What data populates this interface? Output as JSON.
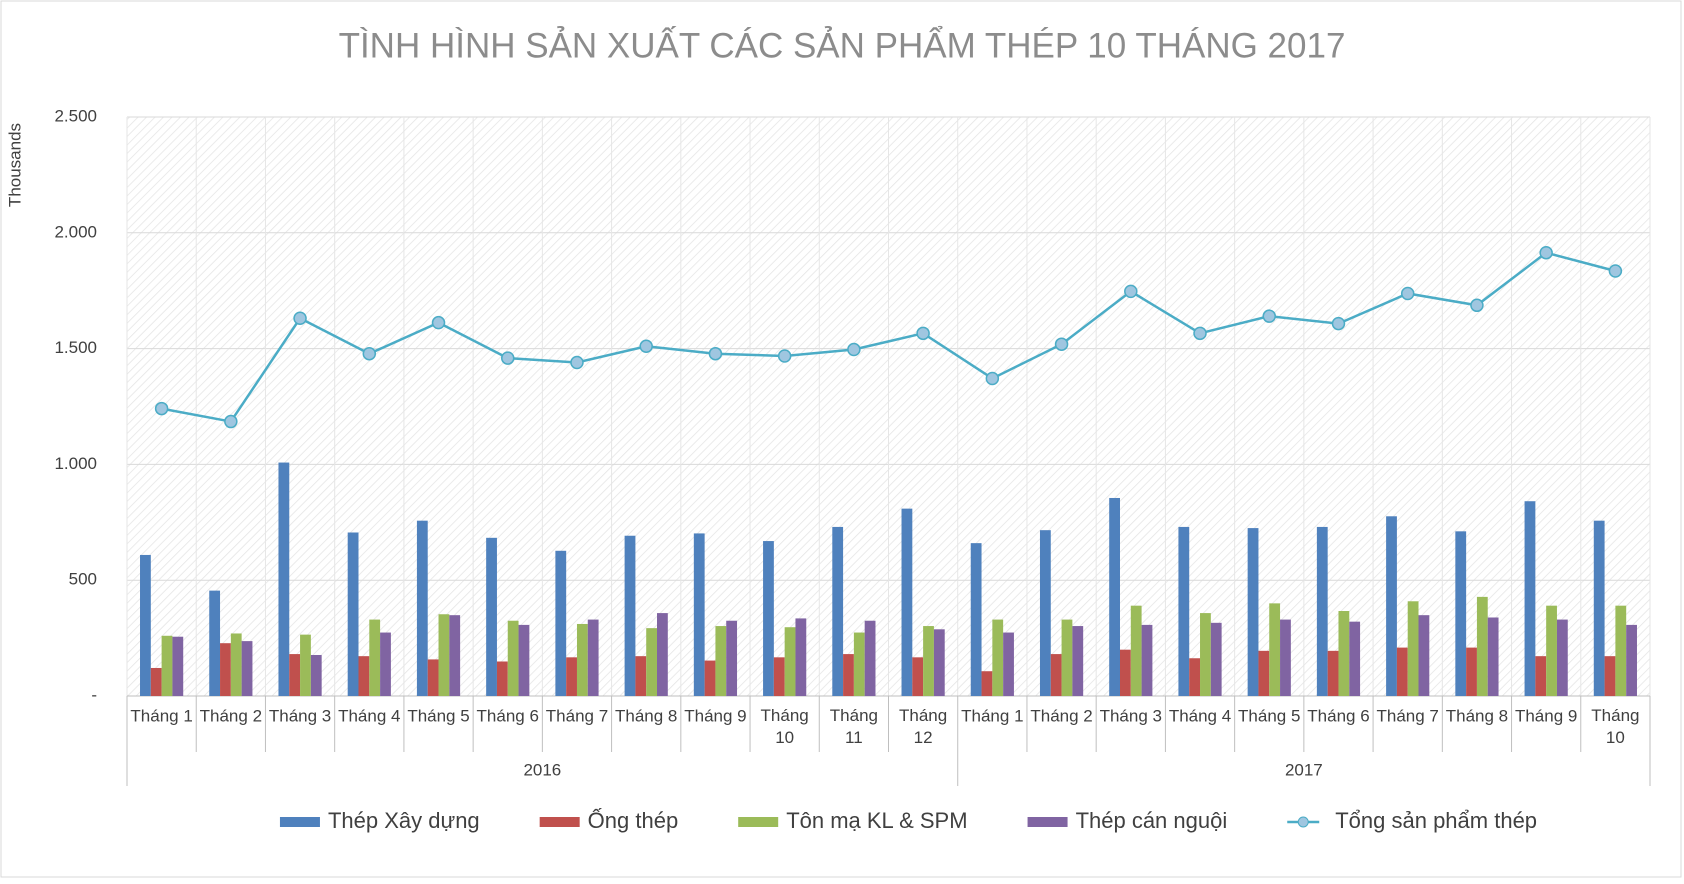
{
  "chart_data": {
    "type": "bar-line",
    "title": "TÌNH HÌNH SẢN XUẤT CÁC SẢN PHẨM THÉP 10 THÁNG 2017",
    "y_label": "Thousands",
    "category_groups": [
      {
        "name": "2016",
        "categories": [
          "Tháng 1",
          "Tháng 2",
          "Tháng 3",
          "Tháng 4",
          "Tháng 5",
          "Tháng 6",
          "Tháng 7",
          "Tháng 8",
          "Tháng 9",
          "Tháng 10",
          "Tháng 11",
          "Tháng 12"
        ]
      },
      {
        "name": "2017",
        "categories": [
          "Tháng 1",
          "Tháng 2",
          "Tháng 3",
          "Tháng 4",
          "Tháng 5",
          "Tháng 6",
          "Tháng 7",
          "Tháng 8",
          "Tháng 9",
          "Tháng 10"
        ]
      }
    ],
    "series": [
      {
        "name": "Thép Xây dựng",
        "type": "bar",
        "color": "#4f81bd",
        "values": [
          609,
          455,
          1008,
          706,
          757,
          683,
          627,
          692,
          702,
          669,
          730,
          809,
          660,
          716,
          855,
          730,
          725,
          730,
          776,
          711,
          841,
          757
        ]
      },
      {
        "name": "Ống thép",
        "type": "bar",
        "color": "#c0504d",
        "values": [
          121,
          228,
          181,
          172,
          158,
          149,
          167,
          172,
          153,
          167,
          181,
          167,
          107,
          181,
          200,
          163,
          195,
          195,
          209,
          209,
          172,
          172
        ]
      },
      {
        "name": "Tôn mạ KL & SPM",
        "type": "bar",
        "color": "#9bbb59",
        "values": [
          260,
          270,
          265,
          330,
          353,
          325,
          311,
          293,
          302,
          297,
          274,
          302,
          330,
          330,
          390,
          358,
          400,
          367,
          409,
          428,
          390,
          390
        ]
      },
      {
        "name": "Thép cán nguội",
        "type": "bar",
        "color": "#8064a2",
        "values": [
          256,
          237,
          177,
          274,
          349,
          307,
          330,
          358,
          325,
          335,
          325,
          288,
          274,
          302,
          307,
          316,
          330,
          321,
          349,
          339,
          330,
          307
        ]
      },
      {
        "name": "Tổng sản phẩm thép",
        "type": "line",
        "color": "#4bacc6",
        "values": [
          1241,
          1185,
          1631,
          1478,
          1612,
          1459,
          1440,
          1510,
          1478,
          1468,
          1496,
          1566,
          1371,
          1519,
          1747,
          1566,
          1640,
          1608,
          1738,
          1687,
          1914,
          1835
        ]
      }
    ],
    "ylim": [
      0,
      2500
    ],
    "yticks": [
      {
        "value": 0,
        "label": "-"
      },
      500,
      {
        "value": 1000,
        "label": "1.000"
      },
      {
        "value": 1500,
        "label": "1.500"
      },
      {
        "value": 2000,
        "label": "2.000"
      },
      {
        "value": 2500,
        "label": "2.500"
      }
    ],
    "grid": true,
    "legend": "bottom"
  }
}
